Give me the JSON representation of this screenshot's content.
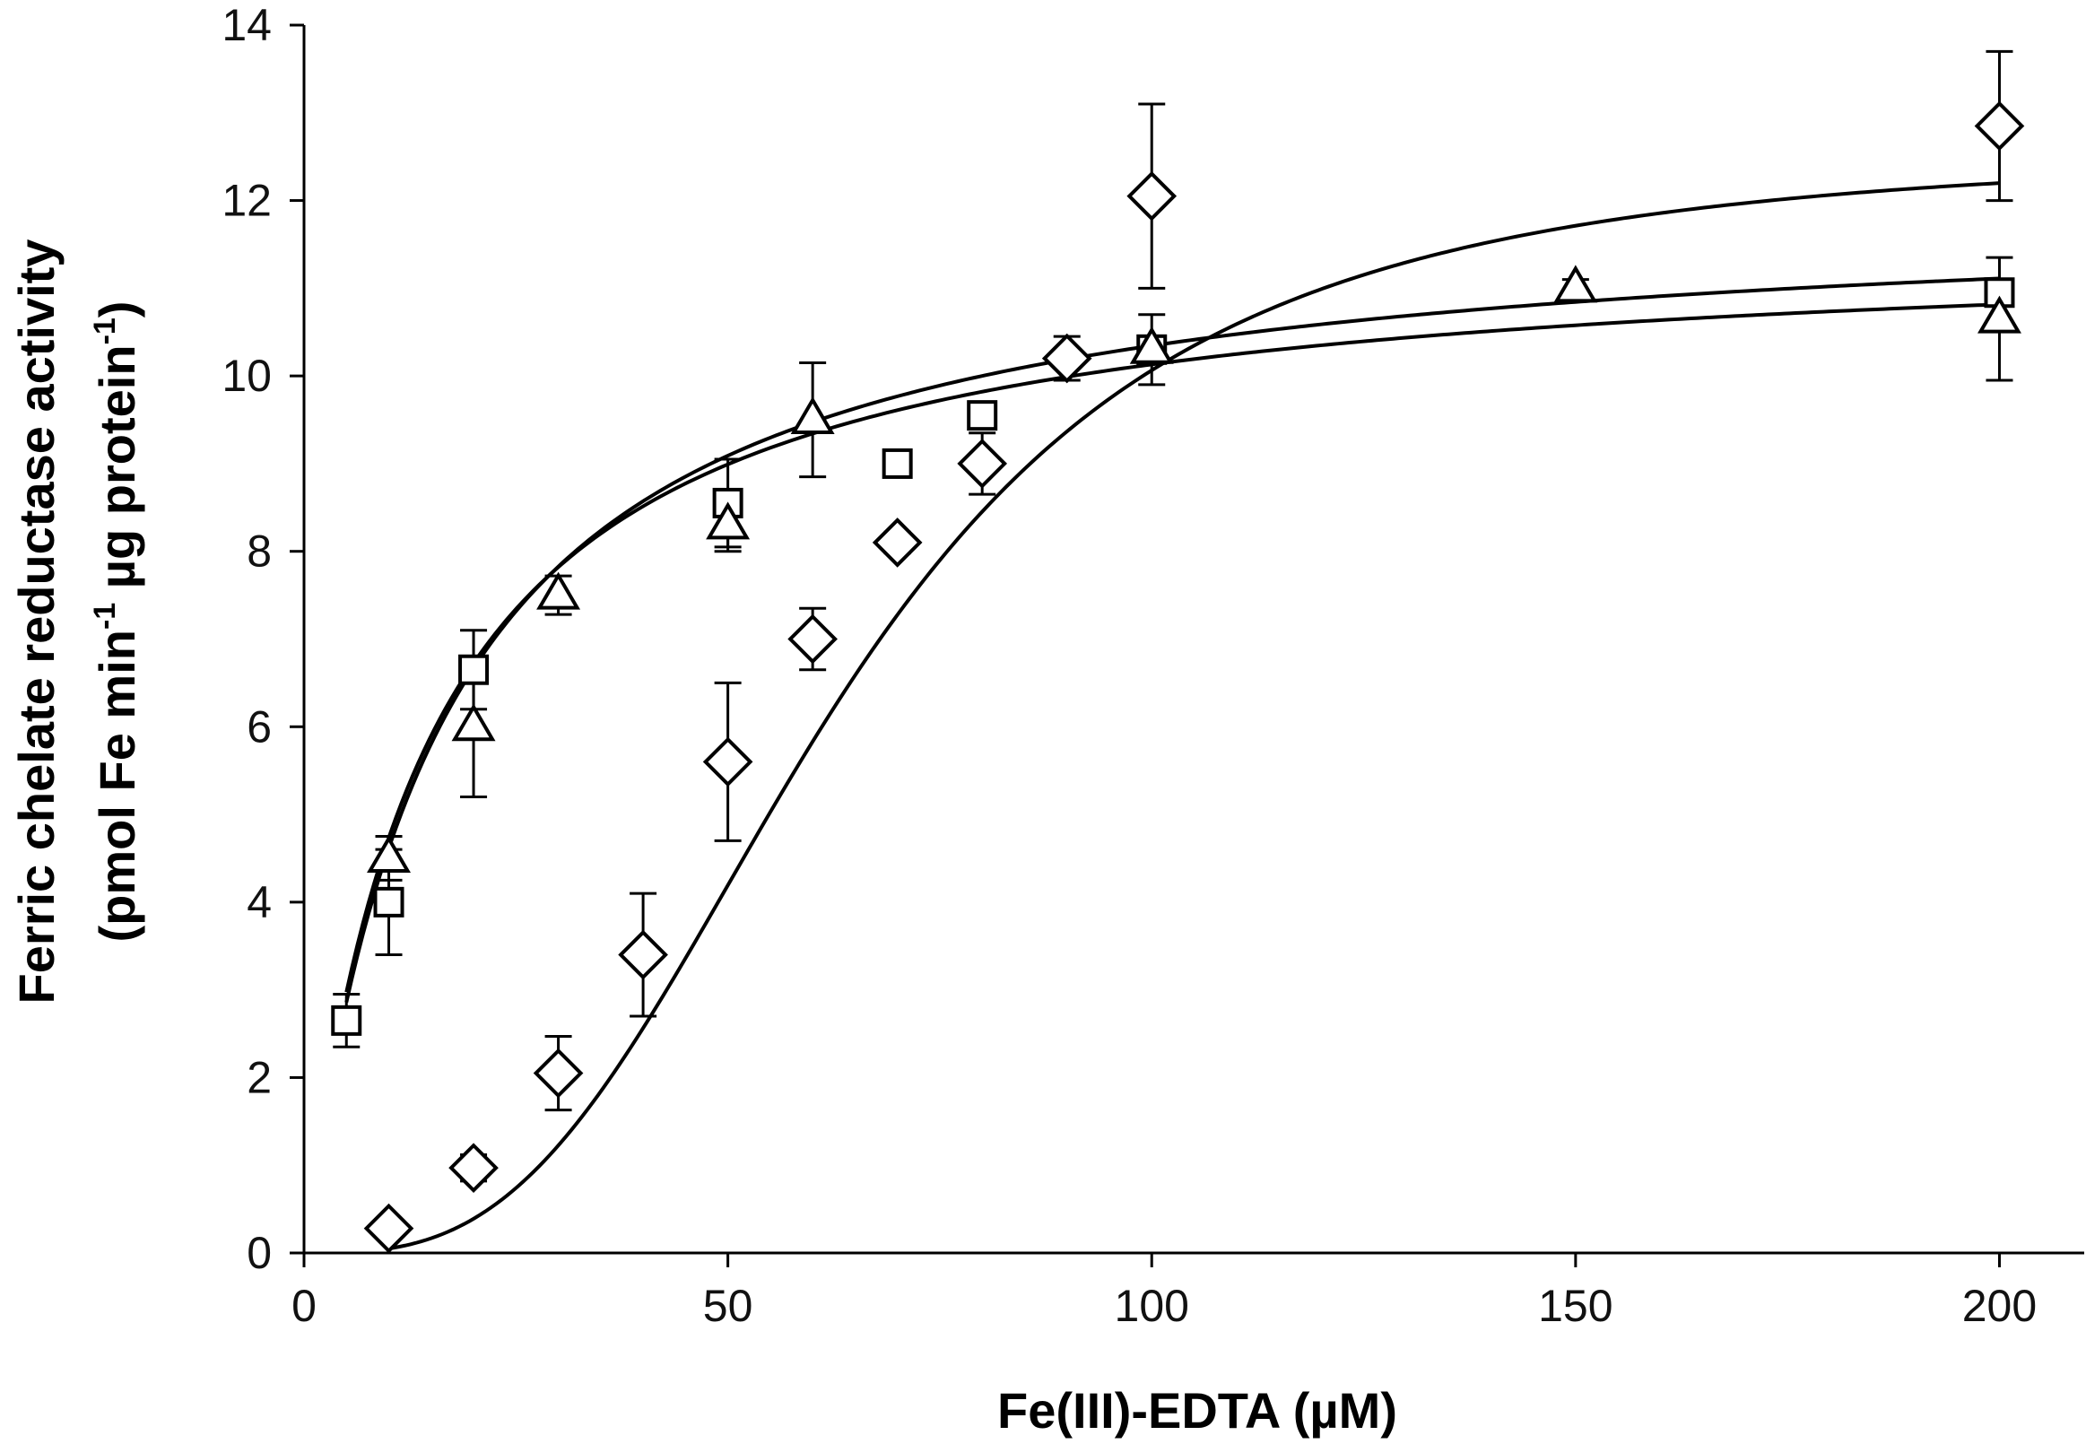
{
  "chart_data": {
    "type": "scatter",
    "title": "",
    "xlabel": "Fe(III)-EDTA (µM)",
    "ylabel": {
      "line1": "Ferric chelate reductase activity",
      "line2_parts": [
        "(pmol Fe min",
        "-1",
        " µg protein",
        "-1",
        ")"
      ]
    },
    "xlim": [
      0,
      210
    ],
    "ylim": [
      0,
      14
    ],
    "xticks": [
      0,
      50,
      100,
      150,
      200
    ],
    "yticks": [
      0,
      2,
      4,
      6,
      8,
      10,
      12,
      14
    ],
    "grid": false,
    "legend": "none",
    "series": [
      {
        "marker": "square",
        "points": [
          {
            "x": 5,
            "y": 2.65,
            "err": 0.3
          },
          {
            "x": 10,
            "y": 4.0,
            "err": 0.6
          },
          {
            "x": 20,
            "y": 6.65,
            "err": 0.45
          },
          {
            "x": 50,
            "y": 8.55,
            "err": 0.5
          },
          {
            "x": 70,
            "y": 9.0,
            "err": 0.12
          },
          {
            "x": 80,
            "y": 9.55,
            "err": 0.12
          },
          {
            "x": 100,
            "y": 10.3,
            "err": 0.12
          },
          {
            "x": 200,
            "y": 10.95,
            "err": 0.15
          }
        ],
        "fit": {
          "model": "hyperbolic",
          "vmax": 12.0,
          "km": 16.0,
          "x_range": [
            5,
            200
          ]
        }
      },
      {
        "marker": "triangle",
        "points": [
          {
            "x": 10,
            "y": 4.5,
            "err": 0.25
          },
          {
            "x": 20,
            "y": 6.0,
            "err": 0.8
          },
          {
            "x": 30,
            "y": 7.5,
            "err": 0.22
          },
          {
            "x": 50,
            "y": 8.3,
            "err": 0.3
          },
          {
            "x": 60,
            "y": 9.5,
            "err": 0.65
          },
          {
            "x": 100,
            "y": 10.3,
            "err": 0.4
          },
          {
            "x": 150,
            "y": 11.0,
            "err": 0.1
          },
          {
            "x": 200,
            "y": 10.65,
            "err": 0.7
          }
        ],
        "fit": {
          "model": "hyperbolic",
          "vmax": 11.6,
          "km": 14.5,
          "x_range": [
            5,
            200
          ]
        }
      },
      {
        "marker": "diamond",
        "points": [
          {
            "x": 10,
            "y": 0.28,
            "err": 0.1
          },
          {
            "x": 20,
            "y": 0.97,
            "err": 0.15
          },
          {
            "x": 30,
            "y": 2.05,
            "err": 0.42
          },
          {
            "x": 40,
            "y": 3.4,
            "err": 0.7
          },
          {
            "x": 50,
            "y": 5.6,
            "err": 0.9
          },
          {
            "x": 60,
            "y": 7.0,
            "err": 0.35
          },
          {
            "x": 70,
            "y": 8.1,
            "err": 0.12
          },
          {
            "x": 80,
            "y": 9.0,
            "err": 0.35
          },
          {
            "x": 90,
            "y": 10.2,
            "err": 0.25
          },
          {
            "x": 100,
            "y": 12.05,
            "err": 1.05
          },
          {
            "x": 200,
            "y": 12.85,
            "err": 0.85
          }
        ],
        "fit": {
          "model": "hill",
          "vmax": 12.58,
          "k": 63.0,
          "n": 3.0,
          "x_range": [
            10,
            200
          ]
        }
      }
    ]
  }
}
